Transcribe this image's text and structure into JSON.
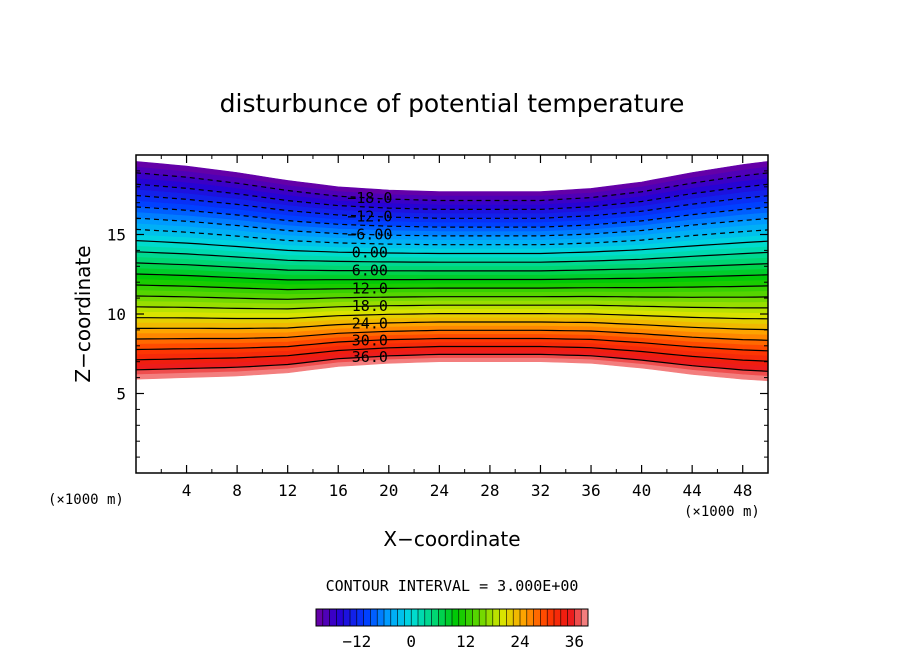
{
  "chart_data": {
    "type": "heatmap",
    "title": "disturbunce of potential temperature",
    "xlabel": "X−coordinate",
    "ylabel": "Z−coordinate",
    "x_unit_label": "(×1000 m)",
    "y_unit_label": "(×1000 m)",
    "xlim": [
      0,
      50
    ],
    "ylim": [
      0,
      20
    ],
    "x_ticks": [
      "4",
      "8",
      "12",
      "16",
      "20",
      "24",
      "28",
      "32",
      "36",
      "40",
      "44",
      "48"
    ],
    "y_ticks": [
      "5",
      "10",
      "15"
    ],
    "contour_interval_text": "CONTOUR INTERVAL = 3.000E+00",
    "contour_interval": 3.0,
    "negative_contours_dashed": true,
    "contour_labels": [
      "−18.0",
      "−12.0",
      "−6.00",
      "0.00",
      "6.00",
      "12.0",
      "18.0",
      "24.0",
      "30.0",
      "36.0"
    ],
    "colorbar": {
      "range": [
        -21,
        39
      ],
      "tick_labels": [
        "−12",
        "0",
        "12",
        "24",
        "36"
      ],
      "colormap": "purple-blue-cyan-green-yellow-red-pink"
    },
    "field_description_values": {
      "x": [
        0,
        4,
        8,
        12,
        16,
        20,
        24,
        28,
        32,
        36,
        40,
        44,
        48,
        50
      ],
      "top_of_field_z": [
        19.6,
        19.3,
        18.9,
        18.4,
        18.0,
        17.8,
        17.7,
        17.7,
        17.7,
        17.9,
        18.3,
        18.9,
        19.4,
        19.6
      ],
      "bottom_of_field_z": [
        5.9,
        6.0,
        6.1,
        6.3,
        6.7,
        6.9,
        7.0,
        7.0,
        7.0,
        6.9,
        6.6,
        6.2,
        5.9,
        5.8
      ]
    },
    "grid": false
  }
}
